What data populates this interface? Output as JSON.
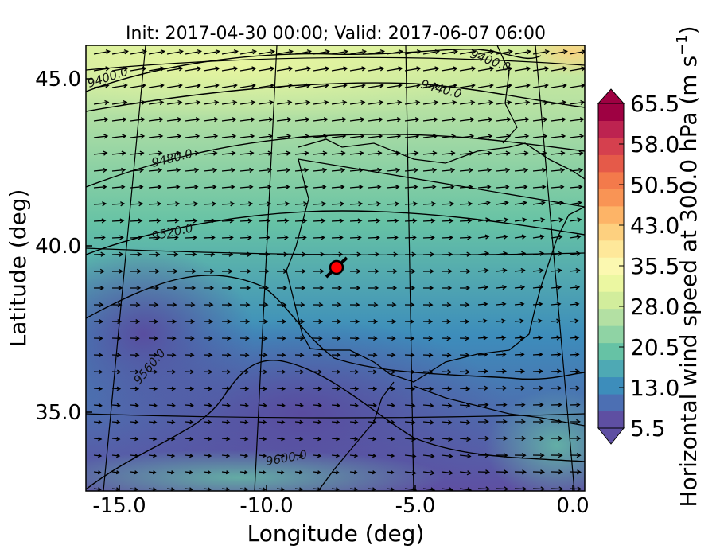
{
  "chart_data": {
    "type": "heatmap",
    "title": "Init: 2017-04-30 00:00; Valid: 2017-06-07 06:00",
    "xlabel": "Longitude (deg)",
    "ylabel": "Latitude (deg)",
    "x_ticks": [
      -15.0,
      -10.0,
      -5.0,
      0.0
    ],
    "y_ticks": [
      35.0,
      40.0,
      45.0
    ],
    "xlim": [
      -16.0,
      0.1
    ],
    "ylim": [
      32.8,
      46.0
    ],
    "x_tick_labels": [
      "-15.0",
      "-10.0",
      "-5.0",
      "0.0"
    ],
    "y_tick_labels": [
      "35.0",
      "40.0",
      "45.0"
    ],
    "colorbar": {
      "label": "Horizontal wind speed at 300.0 hPa (m s",
      "label_sup": "−1",
      "label_end": ")",
      "min": 5.5,
      "max": 65.5,
      "ticks": [
        5.5,
        13.0,
        20.5,
        28.0,
        35.5,
        43.0,
        50.5,
        58.0,
        65.5
      ],
      "tick_labels": [
        "5.5",
        "13.0",
        "20.5",
        "28.0",
        "35.5",
        "43.0",
        "50.5",
        "58.0",
        "65.5"
      ],
      "extend": "both",
      "colors": [
        "#5e4fa2",
        "#4c6fb3",
        "#3d8dbb",
        "#4ea9b4",
        "#66c2a5",
        "#8fd3a4",
        "#b3e0a3",
        "#d2ed9c",
        "#ebf7a1",
        "#fbf8b0",
        "#fee89a",
        "#fdd07f",
        "#fdb467",
        "#f99455",
        "#f37a4b",
        "#e55a49",
        "#d5404e",
        "#bd2350",
        "#9e0142"
      ]
    },
    "contours": {
      "variable": "geopotential height",
      "levels": [
        "9400.0",
        "9440.0",
        "9480.0",
        "9520.0",
        "9560.0",
        "9600.0"
      ]
    },
    "marker": {
      "lon": -7.6,
      "lat": 39.4,
      "color": "#ff0000"
    },
    "legend": "none",
    "grid": "lat/lon graticule"
  }
}
